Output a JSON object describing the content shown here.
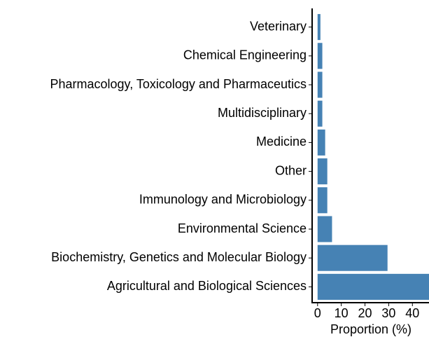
{
  "chart_data": {
    "type": "bar",
    "orientation": "horizontal",
    "categories": [
      "Veterinary",
      "Chemical Engineering",
      "Pharmacology, Toxicology and Pharmaceutics",
      "Multidisciplinary",
      "Medicine",
      "Other",
      "Immunology and Microbiology",
      "Environmental Science",
      "Biochemistry, Genetics and Molecular Biology",
      "Agricultural and Biological Sciences"
    ],
    "values": [
      1.2,
      2.0,
      2.0,
      2.0,
      3.2,
      4.1,
      4.1,
      6.1,
      29.5,
      47
    ],
    "color": "#4682b4",
    "x_label": "Proportion (%)",
    "xlim": [
      -2.3,
      47
    ],
    "xticks": [
      0,
      10,
      20,
      30,
      40
    ],
    "grid": false
  }
}
